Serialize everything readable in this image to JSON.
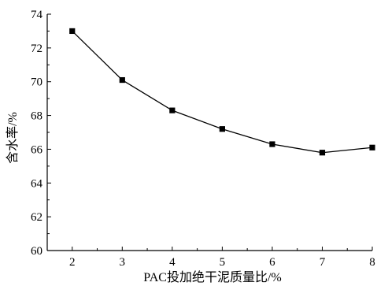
{
  "chart_data": {
    "type": "line",
    "title": "",
    "xlabel": "PAC投加绝干泥质量比/%",
    "ylabel": "含水率/%",
    "x": [
      2,
      3,
      4,
      5,
      6,
      7,
      8
    ],
    "x_tick_labels": [
      "2",
      "3",
      "4",
      "5",
      "6",
      "7",
      "8"
    ],
    "y_tick_labels": [
      "60",
      "62",
      "64",
      "66",
      "68",
      "70",
      "72",
      "74"
    ],
    "y_ticks": [
      60,
      62,
      64,
      66,
      68,
      70,
      72,
      74
    ],
    "series": [
      {
        "values": [
          73.0,
          70.1,
          68.3,
          67.2,
          66.3,
          65.8,
          66.1
        ]
      }
    ],
    "xlim": [
      1.5,
      8
    ],
    "ylim": [
      60,
      74
    ],
    "marker": "square",
    "line_color": "#000000",
    "marker_color": "#000000",
    "grid": false,
    "legend": "none"
  }
}
